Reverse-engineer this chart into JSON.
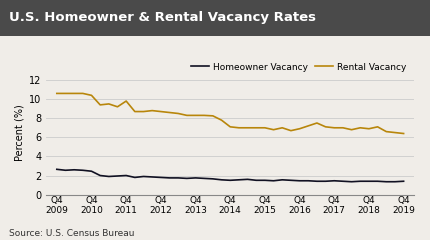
{
  "title": "U.S. Homeowner & Rental Vacancy Rates",
  "title_bg_color": "#4a4a4a",
  "title_text_color": "#ffffff",
  "ylabel": "Percent (%)",
  "source_text": "Source: U.S. Census Bureau",
  "ylim": [
    0,
    13
  ],
  "yticks": [
    0,
    2,
    4,
    6,
    8,
    10,
    12
  ],
  "x_labels": [
    "Q4\n2009",
    "Q4\n2010",
    "Q4\n2011",
    "Q4\n2012",
    "Q4\n2013",
    "Q4\n2014",
    "Q4\n2015",
    "Q4\n2016",
    "Q4\n2017",
    "Q4\n2018",
    "Q4\n2019"
  ],
  "homeowner_color": "#111122",
  "rental_color": "#b8860b",
  "legend_homeowner": "Homeowner Vacancy",
  "legend_rental": "Rental Vacancy",
  "homeowner_vacancy": [
    2.65,
    2.55,
    2.6,
    2.55,
    2.45,
    2.0,
    1.9,
    1.95,
    2.0,
    1.8,
    1.9,
    1.85,
    1.8,
    1.75,
    1.75,
    1.7,
    1.75,
    1.7,
    1.65,
    1.55,
    1.5,
    1.55,
    1.6,
    1.5,
    1.5,
    1.45,
    1.55,
    1.5,
    1.45,
    1.45,
    1.4,
    1.4,
    1.45,
    1.4,
    1.35,
    1.4,
    1.4,
    1.4,
    1.35,
    1.35,
    1.4
  ],
  "rental_vacancy": [
    10.6,
    10.6,
    10.6,
    10.6,
    10.4,
    9.4,
    9.5,
    9.2,
    9.8,
    8.7,
    8.7,
    8.8,
    8.7,
    8.6,
    8.5,
    8.3,
    8.3,
    8.3,
    8.25,
    7.8,
    7.1,
    7.0,
    7.0,
    7.0,
    7.0,
    6.8,
    7.0,
    6.7,
    6.9,
    7.2,
    7.5,
    7.1,
    7.0,
    7.0,
    6.8,
    7.0,
    6.9,
    7.1,
    6.6,
    6.5,
    6.4
  ],
  "bg_color": "#f0ede8"
}
